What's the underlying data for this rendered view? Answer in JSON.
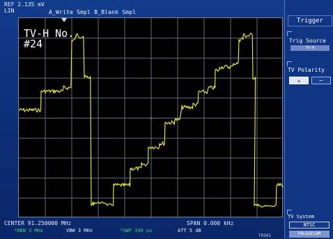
{
  "header": {
    "ref_level": "REF 2.135 mV",
    "scale_mode": "LIN",
    "trace_info": "A_Write  Smpl  B_Blank  Smpl"
  },
  "display": {
    "channel_label": "TV-H No.",
    "channel_number": "#24",
    "trace_color": "#f0ef33",
    "graticule_color": "#5f6b7d"
  },
  "footer": {
    "center_freq": "CENTER 91.250000 MHz",
    "rbw": "*RBW 3 MHz",
    "vbw": "VBW 3 MHz",
    "swp": "*SWP 100 µs",
    "span": "SPAN 0.000 kHz",
    "att": "ATT 5 dB",
    "code": "TR501"
  },
  "menu": {
    "title": "Trigger",
    "trig_source": {
      "label": "Trig Source",
      "value": "TV-H"
    },
    "tv_polarity": {
      "label": "TV Polarity",
      "options": [
        "+",
        "–"
      ],
      "selected": "+"
    },
    "tv_system": {
      "label": "TV System",
      "options": [
        "NTSC",
        "PAL&SECAM"
      ],
      "selected": "NTSC"
    }
  },
  "colors": {
    "background": "#0d2f7a",
    "sidebar": "#0f3583",
    "status_green": "#35d56a"
  }
}
